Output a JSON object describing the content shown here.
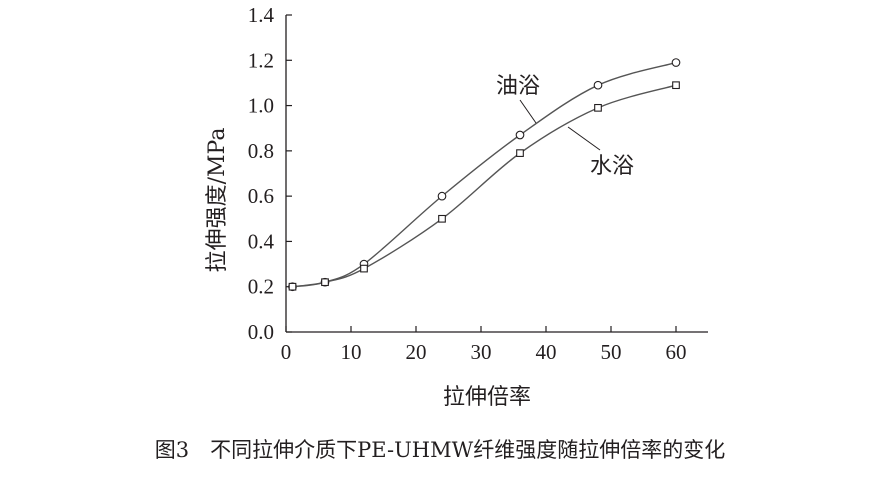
{
  "chart_data": {
    "type": "line",
    "title": "",
    "caption": "图3　不同拉伸介质下PE-UHMW纤维强度随拉伸倍率的变化",
    "xlabel": "拉伸倍率",
    "ylabel": "拉伸强度/MPa",
    "xlim": [
      0,
      65
    ],
    "ylim": [
      0,
      1.4
    ],
    "xticks": [
      0,
      10,
      20,
      30,
      40,
      50,
      60
    ],
    "yticks": [
      "0.0",
      "0.2",
      "0.4",
      "0.6",
      "0.8",
      "1.0",
      "1.2",
      "1.4"
    ],
    "grid": false,
    "x": [
      1,
      6,
      12,
      24,
      36,
      48,
      60
    ],
    "series": [
      {
        "name": "油浴",
        "marker": "circle",
        "values": [
          0.2,
          0.22,
          0.3,
          0.6,
          0.87,
          1.09,
          1.19
        ]
      },
      {
        "name": "水浴",
        "marker": "square",
        "values": [
          0.2,
          0.22,
          0.28,
          0.5,
          0.79,
          0.99,
          1.09
        ]
      }
    ],
    "color": "#231f20"
  }
}
